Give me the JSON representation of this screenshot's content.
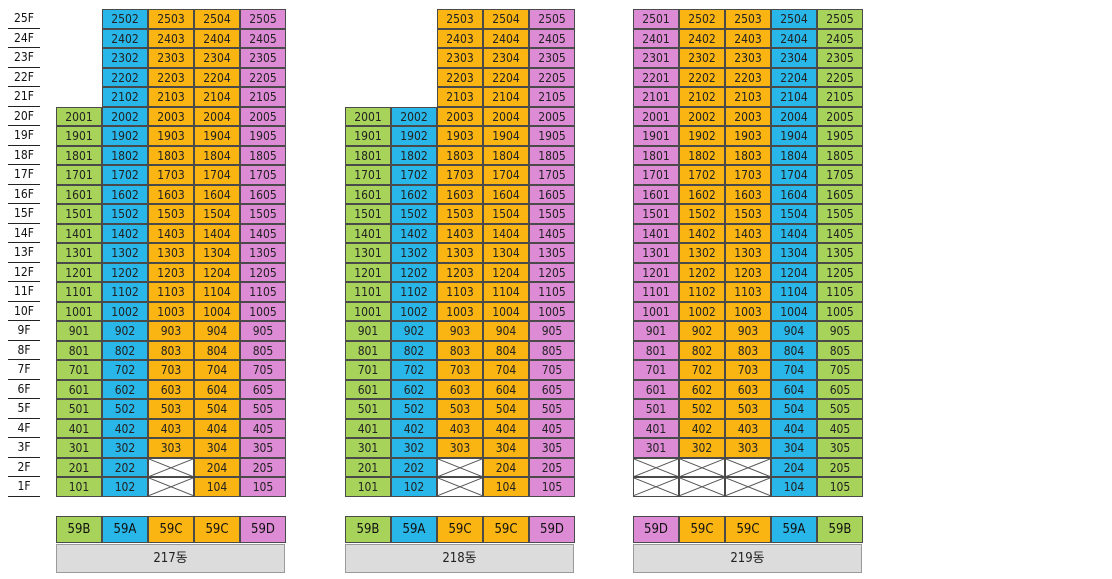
{
  "colors": {
    "59A": "#29b6e8",
    "59B": "#a8d35a",
    "59C": "#fbb512",
    "59D": "#de8bd6"
  },
  "floors": [
    "25F",
    "24F",
    "23F",
    "22F",
    "21F",
    "20F",
    "19F",
    "18F",
    "17F",
    "16F",
    "15F",
    "14F",
    "13F",
    "12F",
    "11F",
    "10F",
    "9F",
    "8F",
    "7F",
    "6F",
    "5F",
    "4F",
    "3F",
    "2F",
    "1F"
  ],
  "buildings": [
    {
      "name": "217동",
      "line_types": [
        "59B",
        "59A",
        "59C",
        "59C",
        "59D"
      ],
      "start_floor": [
        20,
        25,
        25,
        25,
        25
      ],
      "empty_units": [
        "203",
        "103"
      ]
    },
    {
      "name": "218동",
      "line_types": [
        "59B",
        "59A",
        "59C",
        "59C",
        "59D"
      ],
      "start_floor": [
        20,
        20,
        25,
        25,
        25
      ],
      "empty_units": [
        "203",
        "103"
      ]
    },
    {
      "name": "219동",
      "line_types": [
        "59D",
        "59C",
        "59C",
        "59A",
        "59B"
      ],
      "start_floor": [
        25,
        25,
        25,
        25,
        25
      ],
      "empty_units": [
        "201",
        "202",
        "203",
        "101",
        "102",
        "103"
      ]
    }
  ]
}
